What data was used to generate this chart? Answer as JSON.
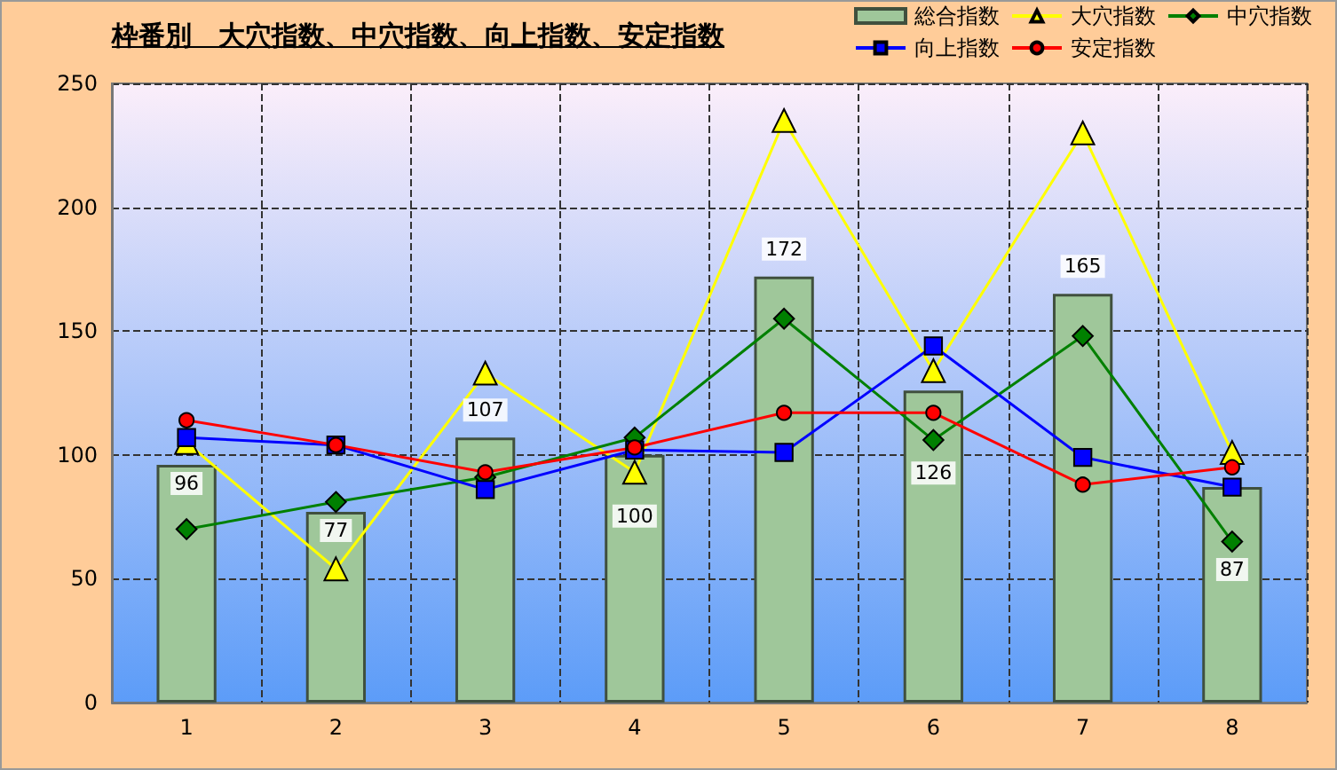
{
  "chart_data": {
    "type": "bar",
    "title": "枠番別　大穴指数、中穴指数、向上指数、安定指数",
    "categories": [
      "1",
      "2",
      "3",
      "4",
      "5",
      "6",
      "7",
      "8"
    ],
    "series": [
      {
        "name": "総合指数",
        "type": "bar",
        "color": "#9fc79a",
        "data_labels": true,
        "values": [
          96,
          77,
          107,
          100,
          172,
          126,
          165,
          87
        ]
      },
      {
        "name": "大穴指数",
        "type": "line",
        "color": "#ffff00",
        "marker": "triangle",
        "values": [
          105,
          54,
          133,
          93,
          235,
          134,
          230,
          101
        ]
      },
      {
        "name": "中穴指数",
        "type": "line",
        "color": "#008000",
        "marker": "diamond",
        "values": [
          70,
          81,
          91,
          107,
          155,
          106,
          148,
          65
        ]
      },
      {
        "name": "向上指数",
        "type": "line",
        "color": "#0000ff",
        "marker": "square",
        "values": [
          107,
          104,
          86,
          102,
          101,
          144,
          99,
          87
        ]
      },
      {
        "name": "安定指数",
        "type": "line",
        "color": "#ff0000",
        "marker": "circle",
        "values": [
          114,
          104,
          93,
          103,
          117,
          117,
          88,
          95
        ]
      }
    ],
    "ylim": [
      0,
      250
    ],
    "yticks": [
      0,
      50,
      100,
      150,
      200,
      250
    ],
    "grid": true,
    "legend": "top right"
  }
}
